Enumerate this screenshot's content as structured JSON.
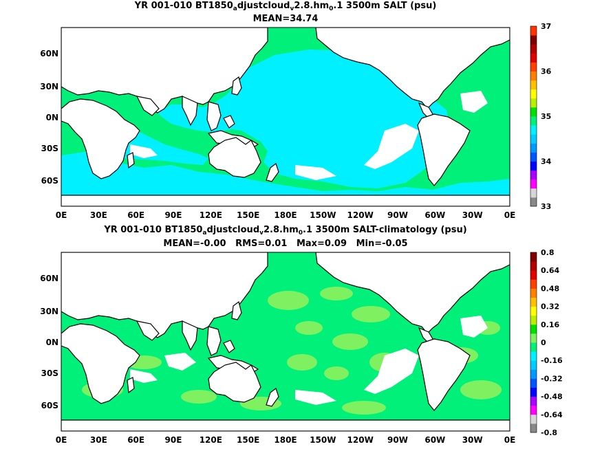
{
  "colors": {
    "cyan": "#00f0ff",
    "green": "#00f07a",
    "lightgreen": "#7ff05f",
    "land": "#ffffff",
    "coast": "#000000"
  },
  "top_panel": {
    "title_prefix": "YR 001-010 BT1850",
    "title_sub1": "a",
    "title_mid1": "djustcloud",
    "title_sub2": "v",
    "title_mid2": "2.8.hm",
    "title_sub3": "0",
    "title_suffix": ".1 3500m SALT (psu)",
    "subtitle": "MEAN=34.74",
    "colorbar_labels": [
      "37",
      "36",
      "35",
      "34",
      "33"
    ],
    "colorbar_colors": [
      "#888888",
      "#d6d6d6",
      "#ff00ff",
      "#aa00ff",
      "#0000ff",
      "#0055ff",
      "#0099ff",
      "#00ccff",
      "#00f0ff",
      "#00f07a",
      "#00e000",
      "#b8f000",
      "#ffff00",
      "#ffc000",
      "#ff8000",
      "#ff4000",
      "#e00000",
      "#b00000",
      "#800000",
      "#ff3300"
    ]
  },
  "bottom_panel": {
    "title_prefix": "YR 001-010 BT1850",
    "title_sub1": "a",
    "title_mid1": "djustcloud",
    "title_sub2": "v",
    "title_mid2": "2.8.hm",
    "title_sub3": "0",
    "title_suffix": ".1 3500m SALT-climatology (psu)",
    "subtitle": "MEAN=-0.00   RMS=0.01   Max=0.09   Min=-0.05",
    "colorbar_labels": [
      "0.8",
      "0.64",
      "0.48",
      "0.32",
      "0.16",
      "0",
      "-0.16",
      "-0.32",
      "-0.48",
      "-0.64",
      "-0.8"
    ],
    "colorbar_colors": [
      "#888888",
      "#d6d6d6",
      "#ff00ff",
      "#aa00ff",
      "#0000ff",
      "#0055ff",
      "#0099ff",
      "#00ccff",
      "#00f0ff",
      "#00f07a",
      "#7ff05f",
      "#00e000",
      "#b8f000",
      "#ffff00",
      "#ffc000",
      "#ff8000",
      "#ff4000",
      "#e00000",
      "#b00000",
      "#800000"
    ]
  },
  "lat_labels": [
    "60N",
    "30N",
    "0N",
    "30S",
    "60S"
  ],
  "lon_labels": [
    "0E",
    "30E",
    "60E",
    "90E",
    "120E",
    "150E",
    "180E",
    "150W",
    "120W",
    "90W",
    "60W",
    "30W",
    "0E"
  ]
}
